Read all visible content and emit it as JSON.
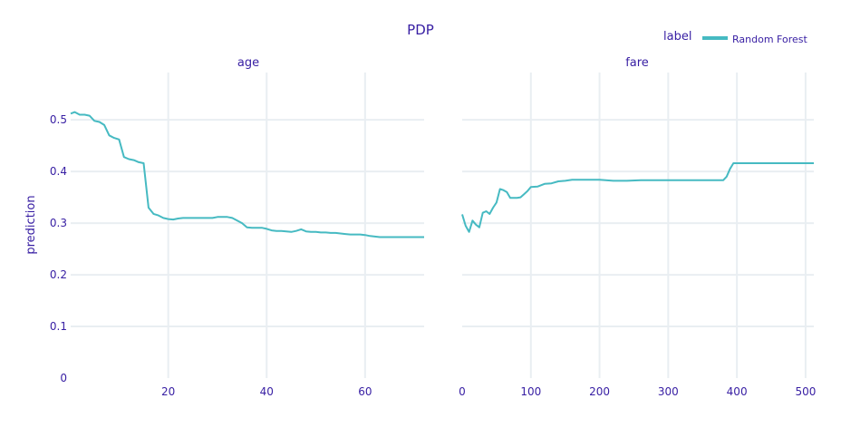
{
  "chart_data": {
    "type": "line",
    "title": "PDP",
    "ylabel": "prediction",
    "legend": {
      "title": "label",
      "position": "top-right",
      "entries": [
        "Random Forest"
      ]
    },
    "series_color": "#46bac2",
    "grid": true,
    "ylim": [
      0,
      0.56
    ],
    "yticks": [
      0,
      0.1,
      0.2,
      0.3,
      0.4,
      0.5
    ],
    "yticklabels": [
      "0",
      "0.1",
      "0.2",
      "0.3",
      "0.4",
      "0.5"
    ],
    "panels": [
      {
        "subtitle": "age",
        "xlim": [
          0.17,
          72
        ],
        "xticks": [
          20,
          40,
          60
        ],
        "xticklabels": [
          "20",
          "40",
          "60"
        ],
        "series": [
          {
            "name": "Random Forest",
            "x": [
              0.17,
              1,
              2,
              3,
              4,
              5,
              6,
              7,
              8,
              9,
              10,
              11,
              12,
              13,
              14,
              15,
              16,
              17,
              18,
              19,
              20,
              21,
              22,
              23,
              24,
              25,
              26,
              27,
              28,
              29,
              30,
              31,
              32,
              33,
              34,
              35,
              36,
              37,
              38,
              39,
              40,
              41,
              42,
              43,
              44,
              45,
              46,
              47,
              48,
              49,
              50,
              51,
              52,
              53,
              54,
              55,
              56,
              57,
              58,
              59,
              60,
              61,
              62,
              63,
              64,
              65,
              66,
              67,
              68,
              69,
              70,
              71,
              72
            ],
            "y": [
              0.512,
              0.515,
              0.51,
              0.51,
              0.508,
              0.498,
              0.496,
              0.49,
              0.47,
              0.465,
              0.462,
              0.428,
              0.424,
              0.422,
              0.418,
              0.416,
              0.33,
              0.318,
              0.315,
              0.31,
              0.308,
              0.307,
              0.309,
              0.31,
              0.31,
              0.31,
              0.31,
              0.31,
              0.31,
              0.31,
              0.312,
              0.312,
              0.312,
              0.31,
              0.305,
              0.3,
              0.292,
              0.291,
              0.291,
              0.291,
              0.289,
              0.286,
              0.285,
              0.285,
              0.284,
              0.283,
              0.285,
              0.288,
              0.284,
              0.283,
              0.283,
              0.282,
              0.282,
              0.281,
              0.281,
              0.28,
              0.279,
              0.278,
              0.278,
              0.278,
              0.277,
              0.275,
              0.274,
              0.273,
              0.273,
              0.273,
              0.273,
              0.273,
              0.273,
              0.273,
              0.273,
              0.273,
              0.273
            ]
          }
        ]
      },
      {
        "subtitle": "fare",
        "xlim": [
          0,
          512
        ],
        "xticks": [
          0,
          100,
          200,
          300,
          400,
          500
        ],
        "xticklabels": [
          "0",
          "100",
          "200",
          "300",
          "400",
          "500"
        ],
        "series": [
          {
            "name": "Random Forest",
            "x": [
              0,
              5,
              10,
              15,
              20,
              25,
              30,
              35,
              40,
              45,
              50,
              55,
              60,
              65,
              70,
              75,
              80,
              85,
              90,
              95,
              100,
              110,
              120,
              130,
              140,
              150,
              160,
              170,
              180,
              200,
              220,
              240,
              260,
              300,
              340,
              380,
              385,
              390,
              395,
              400,
              450,
              512
            ],
            "y": [
              0.317,
              0.295,
              0.283,
              0.305,
              0.297,
              0.292,
              0.32,
              0.323,
              0.318,
              0.33,
              0.34,
              0.366,
              0.364,
              0.36,
              0.349,
              0.349,
              0.349,
              0.35,
              0.356,
              0.362,
              0.37,
              0.371,
              0.376,
              0.377,
              0.381,
              0.382,
              0.384,
              0.384,
              0.384,
              0.384,
              0.382,
              0.382,
              0.383,
              0.383,
              0.383,
              0.383,
              0.39,
              0.405,
              0.416,
              0.416,
              0.416,
              0.416
            ]
          }
        ]
      }
    ]
  }
}
